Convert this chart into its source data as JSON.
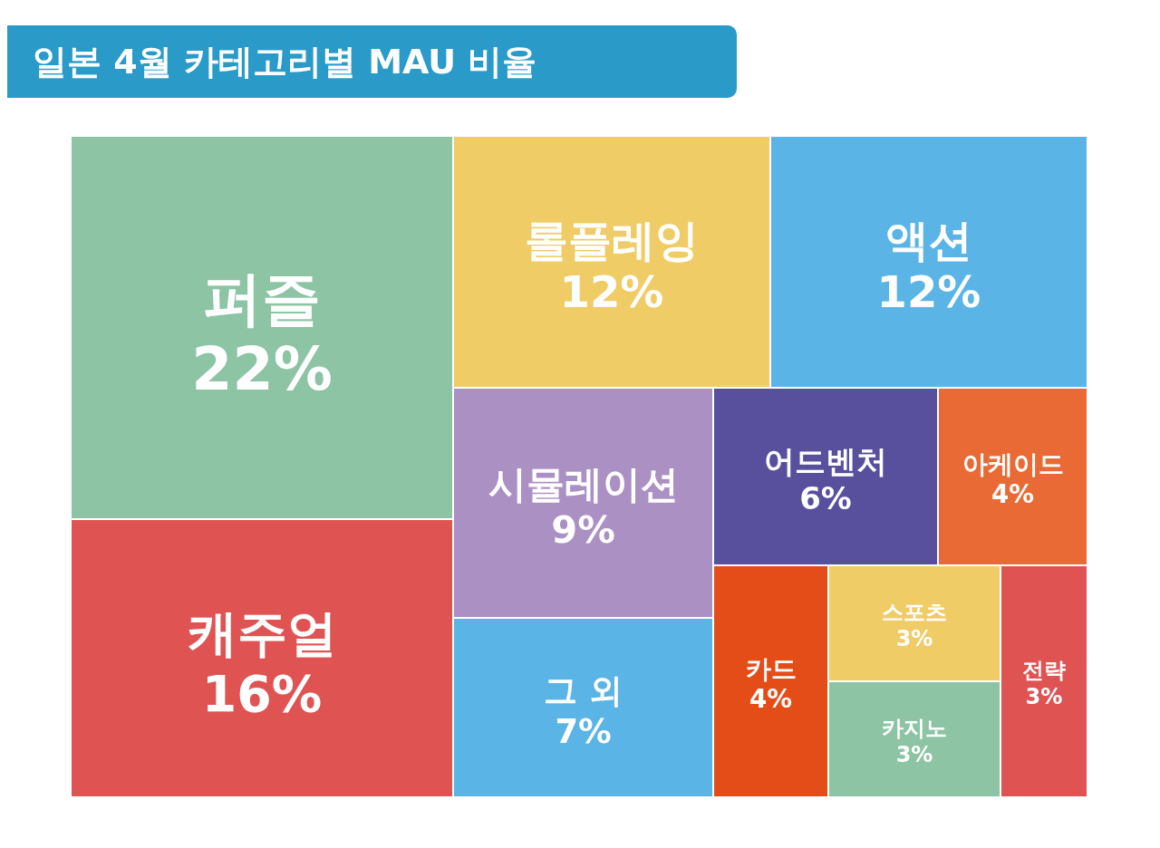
{
  "chart_data": {
    "type": "other",
    "title": "일본 4월 카테고리별 MAU 비율",
    "categories": [
      "퍼즐",
      "캐주얼",
      "롤플레잉",
      "액션",
      "시뮬레이션",
      "그 외",
      "어드벤처",
      "아케이드",
      "카드",
      "스포츠",
      "카지노",
      "전략"
    ],
    "values": [
      22,
      16,
      12,
      12,
      9,
      7,
      6,
      4,
      4,
      3,
      3,
      3
    ],
    "value_labels": [
      "22%",
      "16%",
      "12%",
      "12%",
      "9%",
      "7%",
      "6%",
      "4%",
      "4%",
      "3%",
      "3%",
      "3%"
    ],
    "colors": [
      "#8cc4a4",
      "#e05353",
      "#f0cc66",
      "#5ab4e6",
      "#ab90c4",
      "#5ab4e6",
      "#58509c",
      "#ea6a35",
      "#e44d18",
      "#f0cc66",
      "#8cc4a4",
      "#e05353"
    ]
  }
}
